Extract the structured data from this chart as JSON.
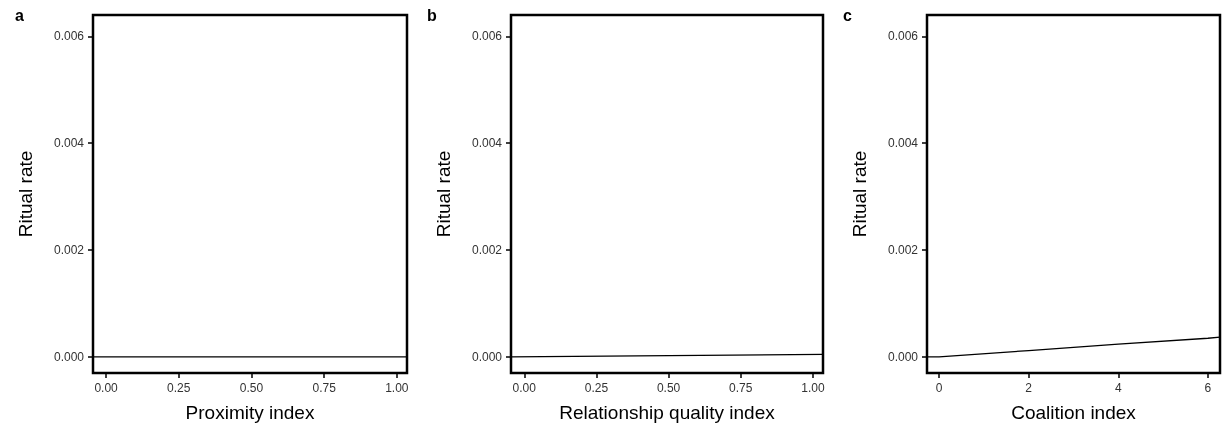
{
  "chart_data": [
    {
      "type": "line",
      "title": "a",
      "xlabel": "Proximity index",
      "ylabel": "Ritual rate",
      "xlim": [
        -0.045,
        1.035
      ],
      "ylim": [
        -0.0003,
        0.0064
      ],
      "xticks": [
        {
          "value": 0,
          "label": "0.00"
        },
        {
          "value": 0.25,
          "label": "0.25"
        },
        {
          "value": 0.5,
          "label": "0.50"
        },
        {
          "value": 0.75,
          "label": "0.75"
        },
        {
          "value": 1,
          "label": "1.00"
        }
      ],
      "yticks": [
        {
          "value": 0,
          "label": "0.000"
        },
        {
          "value": 0.002,
          "label": "0.002"
        },
        {
          "value": 0.004,
          "label": "0.004"
        },
        {
          "value": 0.006,
          "label": "0.006"
        }
      ],
      "series": [
        {
          "color": "#000000",
          "x": [
            -0.045,
            1.035
          ],
          "values": [
            0,
            0
          ]
        }
      ],
      "marker": "none",
      "line_style": "solid",
      "grid": false
    },
    {
      "type": "line",
      "title": "b",
      "xlabel": "Relationship quality index",
      "ylabel": "Ritual rate",
      "xlim": [
        -0.046,
        1.035
      ],
      "ylim": [
        -0.0003,
        0.0064
      ],
      "xticks": [
        {
          "value": 0,
          "label": "0.00"
        },
        {
          "value": 0.25,
          "label": "0.25"
        },
        {
          "value": 0.5,
          "label": "0.50"
        },
        {
          "value": 0.75,
          "label": "0.75"
        },
        {
          "value": 1,
          "label": "1.00"
        }
      ],
      "yticks": [
        {
          "value": 0,
          "label": "0.000"
        },
        {
          "value": 0.002,
          "label": "0.002"
        },
        {
          "value": 0.004,
          "label": "0.004"
        },
        {
          "value": 0.006,
          "label": "0.006"
        }
      ],
      "series": [
        {
          "color": "#000000",
          "x": [
            -0.046,
            1.035
          ],
          "values": [
            0,
            5e-05
          ]
        }
      ],
      "marker": "none",
      "line_style": "solid",
      "grid": false
    },
    {
      "type": "line",
      "title": "c",
      "xlabel": "Coalition index",
      "ylabel": "Ritual rate",
      "xlim": [
        -0.27,
        6.27
      ],
      "ylim": [
        -0.0003,
        0.0064
      ],
      "xticks": [
        0,
        2,
        4,
        6
      ],
      "yticks": [
        {
          "value": 0,
          "label": "0.000"
        },
        {
          "value": 0.002,
          "label": "0.002"
        },
        {
          "value": 0.004,
          "label": "0.004"
        },
        {
          "value": 0.006,
          "label": "0.006"
        }
      ],
      "series": [
        {
          "color": "#000000",
          "x": [
            -0.27,
            0,
            2,
            4,
            6,
            6.27
          ],
          "values": [
            0,
            0,
            0.00012,
            0.00024,
            0.00035,
            0.00037
          ]
        }
      ],
      "marker": "none",
      "line_style": "solid",
      "grid": false
    }
  ]
}
